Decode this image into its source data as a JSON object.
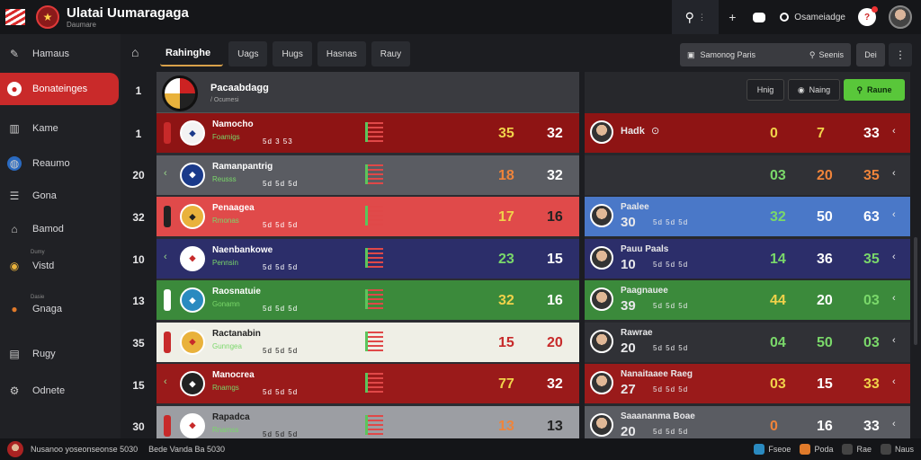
{
  "app": {
    "title": "Ulatai Uumaragaga",
    "subtitle": "Daumare",
    "logo_icon": "crest-icon"
  },
  "top": {
    "user_label": "Osameiadge"
  },
  "sidebar": {
    "items": [
      {
        "label": "Hamaus",
        "icon": "wrench-icon"
      },
      {
        "label": "Bonateinges",
        "icon": "person-icon"
      },
      {
        "label": "Kame",
        "icon": "chart-icon"
      },
      {
        "label": "Reaumo",
        "icon": "globe-icon"
      },
      {
        "label": "Gona",
        "icon": "list-icon"
      },
      {
        "label": "Bamod",
        "icon": "building-icon"
      },
      {
        "label": "Vistd",
        "sub": "Dumy",
        "icon": "coin-icon"
      },
      {
        "label": "Gnaga",
        "sub": "Dasie",
        "icon": "ball-icon"
      },
      {
        "label": "Rugy",
        "icon": "trophy-icon"
      },
      {
        "label": "Odnete",
        "icon": "settings-icon"
      }
    ]
  },
  "tabs": [
    {
      "label": "Rahinghe"
    },
    {
      "label": "Uags"
    },
    {
      "label": "Hugs"
    },
    {
      "label": "Hasnas"
    },
    {
      "label": "Rauy"
    }
  ],
  "ranks": [
    "1",
    "1",
    "20",
    "32",
    "10",
    "13",
    "35",
    "15",
    "30"
  ],
  "center": {
    "header_title": "Pacaabdagg",
    "header_sub": "/ Ocumesi",
    "rows": [
      {
        "name": "Namocho",
        "meta": "Foamigs",
        "meta2": "5d 3 53",
        "s1": "35",
        "s2": "32",
        "bg": "#8e1414",
        "crest": "#f3f3f3",
        "crest_fg": "#1a3a8a",
        "player": "#c72a2a",
        "s1c": "#f1d24a",
        "s2c": "#ffffff",
        "textc": "#ffffff"
      },
      {
        "name": "Ramanpantrig",
        "meta": "Reusss",
        "meta2": "5d 5d 5d",
        "s1": "18",
        "s2": "32",
        "bg": "#5a5c62",
        "crest": "#1a3a8a",
        "crest_fg": "#ffffff",
        "player": "",
        "s1c": "#f0843a",
        "s2c": "#ffffff",
        "textc": "#ffffff"
      },
      {
        "name": "Penaagea",
        "meta": "Rmonas",
        "meta2": "5d 5d 5d",
        "s1": "17",
        "s2": "16",
        "bg": "#e04a4a",
        "crest": "#e9b23c",
        "crest_fg": "#222222",
        "player": "#222222",
        "s1c": "#f1d24a",
        "s2c": "#222222",
        "textc": "#ffffff"
      },
      {
        "name": "Naenbankowe",
        "meta": "Pennsin",
        "meta2": "5d 5d 5d",
        "s1": "23",
        "s2": "15",
        "bg": "#2c2e6a",
        "crest": "#ffffff",
        "crest_fg": "#c72a2a",
        "player": "",
        "s1c": "#7ad86a",
        "s2c": "#ffffff",
        "textc": "#ffffff"
      },
      {
        "name": "Raosnatuie",
        "meta": "Gonamn",
        "meta2": "5d 5d 5d",
        "s1": "32",
        "s2": "16",
        "bg": "#3b8a3b",
        "crest": "#2a8ac0",
        "crest_fg": "#ffffff",
        "player": "#ffffff",
        "s1c": "#f1d24a",
        "s2c": "#ffffff",
        "textc": "#ffffff"
      },
      {
        "name": "Ractanabin",
        "meta": "Gunngea",
        "meta2": "5d 5d 5d",
        "s1": "15",
        "s2": "20",
        "bg": "#efefe6",
        "crest": "#e9b23c",
        "crest_fg": "#c72a2a",
        "player": "#c72a2a",
        "s1c": "#c72a2a",
        "s2c": "#c72a2a",
        "textc": "#222222"
      },
      {
        "name": "Manocrea",
        "meta": "Rnamgs",
        "meta2": "5d 5d 5d",
        "s1": "77",
        "s2": "32",
        "bg": "#9a1a1a",
        "crest": "#222222",
        "crest_fg": "#ffffff",
        "player": "",
        "s1c": "#f1d24a",
        "s2c": "#ffffff",
        "textc": "#ffffff"
      },
      {
        "name": "Rapadca",
        "meta": "Rnamss",
        "meta2": "5d 5d 5d",
        "s1": "13",
        "s2": "13",
        "bg": "#9c9ea3",
        "crest": "#ffffff",
        "crest_fg": "#c72a2a",
        "player": "#c72a2a",
        "s1c": "#f0843a",
        "s2c": "#222222",
        "textc": "#222222"
      }
    ]
  },
  "right": {
    "buttons": {
      "b1": "Hnig",
      "b2": "Naing",
      "b3": "Raune"
    },
    "rows": [
      {
        "name": "Hadk",
        "num": "",
        "meta": "",
        "v1": "0",
        "v2": "7",
        "v3": "33",
        "bg": "#8e1414",
        "c1": "#f1d24a",
        "c2": "#f1d24a",
        "c3": "#ffffff"
      },
      {
        "name": "",
        "num": "",
        "meta": "",
        "v1": "03",
        "v2": "20",
        "v3": "35",
        "bg": "#303136",
        "c1": "#7ad86a",
        "c2": "#f0843a",
        "c3": "#f0843a"
      },
      {
        "name": "Paalee",
        "num": "30",
        "meta": "5d 5d 5d",
        "v1": "32",
        "v2": "50",
        "v3": "63",
        "bg": "#4a78c8",
        "c1": "#7ad86a",
        "c2": "#ffffff",
        "c3": "#ffffff"
      },
      {
        "name": "Pauu Paals",
        "num": "10",
        "meta": "5d 5d 5d",
        "v1": "14",
        "v2": "36",
        "v3": "35",
        "bg": "#2c2e6a",
        "c1": "#7ad86a",
        "c2": "#ffffff",
        "c3": "#7ad86a"
      },
      {
        "name": "Paagnauee",
        "num": "39",
        "meta": "5d 5d 5d",
        "v1": "44",
        "v2": "20",
        "v3": "03",
        "bg": "#3b8a3b",
        "c1": "#f1d24a",
        "c2": "#ffffff",
        "c3": "#7ad86a"
      },
      {
        "name": "Rawrae",
        "num": "20",
        "meta": "5d 5d 5d",
        "v1": "04",
        "v2": "50",
        "v3": "03",
        "bg": "#303136",
        "c1": "#7ad86a",
        "c2": "#7ad86a",
        "c3": "#7ad86a"
      },
      {
        "name": "Nanaitaaee Raeg",
        "num": "27",
        "meta": "5d 5d 5d",
        "v1": "03",
        "v2": "15",
        "v3": "33",
        "bg": "#9a1a1a",
        "c1": "#f1d24a",
        "c2": "#ffffff",
        "c3": "#f1d24a"
      },
      {
        "name": "Saaananma Boae",
        "num": "20",
        "meta": "5d 5d 5d",
        "v1": "0",
        "v2": "16",
        "v3": "33",
        "bg": "#5a5c62",
        "c1": "#f0843a",
        "c2": "#ffffff",
        "c3": "#ffffff"
      }
    ]
  },
  "bottom": {
    "left_text": "Nusanoo yoseonseonse 5030",
    "mid_text": "Bede Vanda Ba 5030",
    "chips": [
      {
        "label": "Fseoe",
        "color": "#2a8ac0"
      },
      {
        "label": "Poda",
        "color": "#e07a2a"
      },
      {
        "label": "Rae",
        "color": "#444"
      },
      {
        "label": "Naus",
        "color": "#444"
      }
    ]
  }
}
